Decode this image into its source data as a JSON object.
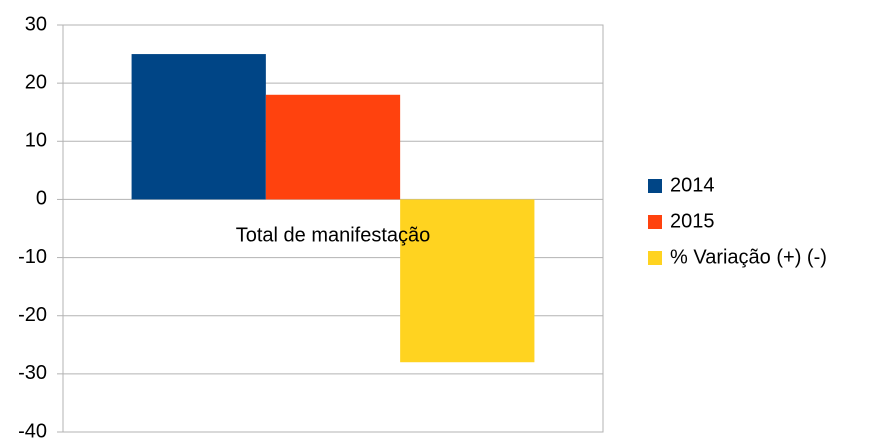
{
  "chart_data": {
    "type": "bar",
    "categories": [
      "Total de manifestação"
    ],
    "series": [
      {
        "name": "2014",
        "color": "#004586",
        "values": [
          25
        ]
      },
      {
        "name": "2015",
        "color": "#ff420e",
        "values": [
          18
        ]
      },
      {
        "name": "% Variação (+) (-)",
        "color": "#ffd320",
        "values": [
          -28
        ]
      }
    ],
    "ylim": [
      -40,
      30
    ],
    "yticks": [
      -40,
      -30,
      -20,
      -10,
      0,
      10,
      20,
      30
    ],
    "grid": true,
    "legend": "right"
  }
}
